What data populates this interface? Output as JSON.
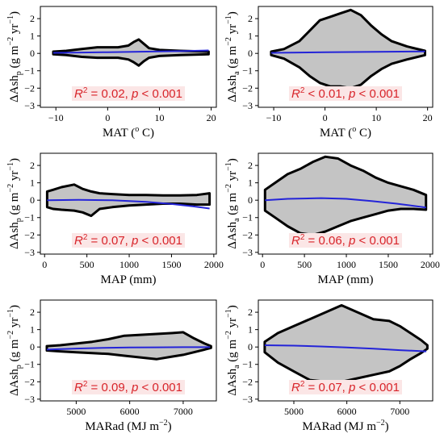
{
  "colors": {
    "cloud": "#c4c4c4",
    "cloud_edge": "#000000",
    "trend": "#2424d8",
    "stat_text": "#d8242a",
    "stat_box": "#fbe6e6"
  },
  "chart_data": [
    {
      "id": "a",
      "type": "scatter",
      "xlabel_main": "MAT (",
      "xlabel_sup": "o",
      "xlabel_end": " C)",
      "ylabel_main": "ΔAsh",
      "ylabel_sub": "p",
      "ylabel_unit": " (g m",
      "ylabel_sup1": "−2",
      "ylabel_mid": " yr",
      "ylabel_sup2": "−1",
      "ylabel_close": ")",
      "xlim": [
        -13,
        21
      ],
      "ylim": [
        -3.1,
        2.7
      ],
      "xticks": [
        -10,
        0,
        10,
        20
      ],
      "xtick_labels": [
        "−10",
        "0",
        "10",
        "20"
      ],
      "yticks": [
        -3,
        -2,
        -1,
        0,
        1,
        2
      ],
      "ytick_labels": [
        "−3",
        "−2",
        "−1",
        "0",
        "1",
        "2"
      ],
      "stat_r2": "R",
      "stat_sup": "2",
      "stat_rest": " = 0.02, ",
      "stat_p": "p",
      "stat_end": " < 0.001",
      "trend": {
        "x": [
          -10.5,
          -5,
          0,
          5,
          10,
          15,
          19.5
        ],
        "y": [
          0.03,
          0.05,
          0.07,
          0.09,
          0.11,
          0.14,
          0.17
        ]
      },
      "upper": {
        "x": [
          -10.5,
          -8,
          -5,
          -2,
          0,
          2,
          4,
          5,
          6,
          7,
          8,
          10,
          14,
          19.5
        ],
        "y": [
          0.1,
          0.15,
          0.25,
          0.35,
          0.35,
          0.35,
          0.45,
          0.65,
          0.8,
          0.55,
          0.3,
          0.2,
          0.15,
          0.1
        ]
      },
      "lower": {
        "x": [
          -10.5,
          -8,
          -5,
          -2,
          0,
          2,
          4,
          5,
          6,
          7,
          8,
          10,
          14,
          19.5
        ],
        "y": [
          -0.05,
          -0.1,
          -0.2,
          -0.25,
          -0.25,
          -0.25,
          -0.35,
          -0.5,
          -0.7,
          -0.45,
          -0.25,
          -0.15,
          -0.1,
          -0.05
        ]
      }
    },
    {
      "id": "b",
      "type": "scatter",
      "xlabel_main": "MAT (",
      "xlabel_sup": "o",
      "xlabel_end": " C)",
      "ylabel_main": "ΔAsh",
      "ylabel_sub": "a",
      "ylabel_unit": " (g m",
      "ylabel_sup1": "−2",
      "ylabel_mid": " yr",
      "ylabel_sup2": "−1",
      "ylabel_close": ")",
      "xlim": [
        -13,
        21
      ],
      "ylim": [
        -3.1,
        2.7
      ],
      "xticks": [
        -10,
        0,
        10,
        20
      ],
      "xtick_labels": [
        "−10",
        "0",
        "10",
        "20"
      ],
      "yticks": [
        -3,
        -2,
        -1,
        0,
        1,
        2
      ],
      "ytick_labels": [
        "−3",
        "−2",
        "−1",
        "0",
        "1",
        "2"
      ],
      "stat_r2": "R",
      "stat_sup": "2",
      "stat_rest": " < 0.01, ",
      "stat_p": "p",
      "stat_end": " < 0.001",
      "trend": {
        "x": [
          -10.5,
          -5,
          0,
          5,
          10,
          15,
          19.5
        ],
        "y": [
          0.03,
          0.05,
          0.07,
          0.08,
          0.09,
          0.1,
          0.11
        ]
      },
      "upper": {
        "x": [
          -10.5,
          -8,
          -5,
          -3,
          -1,
          1,
          3,
          5,
          7,
          9,
          11,
          13,
          16,
          19.5
        ],
        "y": [
          0.1,
          0.25,
          0.7,
          1.3,
          1.9,
          2.1,
          2.3,
          2.5,
          2.2,
          1.6,
          1.1,
          0.7,
          0.4,
          0.15
        ]
      },
      "lower": {
        "x": [
          -10.5,
          -8,
          -5,
          -3,
          -1,
          1,
          3,
          5,
          7,
          9,
          11,
          13,
          16,
          19.5
        ],
        "y": [
          -0.1,
          -0.3,
          -0.8,
          -1.3,
          -1.7,
          -1.9,
          -1.9,
          -2.0,
          -1.8,
          -1.3,
          -0.9,
          -0.6,
          -0.35,
          -0.1
        ]
      }
    },
    {
      "id": "c",
      "type": "scatter",
      "xlabel_main": "MAP (mm)",
      "xlabel_sup": "",
      "xlabel_end": "",
      "ylabel_main": "ΔAsh",
      "ylabel_sub": "p",
      "ylabel_unit": " (g m",
      "ylabel_sup1": "−2",
      "ylabel_mid": " yr",
      "ylabel_sup2": "−1",
      "ylabel_close": ")",
      "xlim": [
        -50,
        2030
      ],
      "ylim": [
        -3.1,
        2.7
      ],
      "xticks": [
        0,
        500,
        1000,
        1500,
        2000
      ],
      "xtick_labels": [
        "0",
        "500",
        "1000",
        "1500",
        "2000"
      ],
      "yticks": [
        -3,
        -2,
        -1,
        0,
        1,
        2
      ],
      "ytick_labels": [
        "−3",
        "−2",
        "−1",
        "0",
        "1",
        "2"
      ],
      "stat_r2": "R",
      "stat_sup": "2",
      "stat_rest": " = 0.07, ",
      "stat_p": "p",
      "stat_end": " < 0.001",
      "trend": {
        "x": [
          30,
          400,
          800,
          1200,
          1500,
          1750,
          1950
        ],
        "y": [
          0.0,
          0.02,
          0.0,
          -0.1,
          -0.22,
          -0.35,
          -0.48
        ]
      },
      "upper": {
        "x": [
          30,
          100,
          200,
          350,
          450,
          550,
          650,
          800,
          1000,
          1200,
          1400,
          1600,
          1800,
          1950
        ],
        "y": [
          0.5,
          0.6,
          0.75,
          0.9,
          0.65,
          0.5,
          0.4,
          0.35,
          0.3,
          0.3,
          0.28,
          0.28,
          0.3,
          0.4
        ]
      },
      "lower": {
        "x": [
          30,
          100,
          200,
          350,
          450,
          550,
          650,
          800,
          1000,
          1200,
          1400,
          1600,
          1800,
          1950
        ],
        "y": [
          -0.4,
          -0.5,
          -0.55,
          -0.6,
          -0.7,
          -0.9,
          -0.5,
          -0.4,
          -0.3,
          -0.25,
          -0.2,
          -0.2,
          -0.25,
          -0.25
        ]
      }
    },
    {
      "id": "d",
      "type": "scatter",
      "xlabel_main": "MAP (mm)",
      "xlabel_sup": "",
      "xlabel_end": "",
      "ylabel_main": "ΔAsh",
      "ylabel_sub": "a",
      "ylabel_unit": " (g m",
      "ylabel_sup1": "−2",
      "ylabel_mid": " yr",
      "ylabel_sup2": "−1",
      "ylabel_close": ")",
      "xlim": [
        -50,
        2030
      ],
      "ylim": [
        -3.1,
        2.7
      ],
      "xticks": [
        0,
        500,
        1000,
        1500,
        2000
      ],
      "xtick_labels": [
        "0",
        "500",
        "1000",
        "1500",
        "2000"
      ],
      "yticks": [
        -3,
        -2,
        -1,
        0,
        1,
        2
      ],
      "ytick_labels": [
        "−3",
        "−2",
        "−1",
        "0",
        "1",
        "2"
      ],
      "stat_r2": "R",
      "stat_sup": "2",
      "stat_rest": " = 0.06, ",
      "stat_p": "p",
      "stat_end": " < 0.001",
      "trend": {
        "x": [
          30,
          300,
          700,
          1000,
          1300,
          1600,
          1950
        ],
        "y": [
          0.0,
          0.08,
          0.12,
          0.08,
          -0.05,
          -0.2,
          -0.42
        ]
      },
      "upper": {
        "x": [
          30,
          150,
          300,
          450,
          600,
          750,
          900,
          1050,
          1200,
          1350,
          1500,
          1650,
          1800,
          1950
        ],
        "y": [
          0.6,
          1.0,
          1.5,
          1.8,
          2.2,
          2.5,
          2.4,
          2.0,
          1.7,
          1.3,
          1.0,
          0.8,
          0.6,
          0.3
        ]
      },
      "lower": {
        "x": [
          30,
          150,
          300,
          450,
          600,
          750,
          900,
          1050,
          1200,
          1350,
          1500,
          1650,
          1800,
          1950
        ],
        "y": [
          -0.6,
          -1.0,
          -1.5,
          -1.9,
          -2.0,
          -1.8,
          -1.5,
          -1.2,
          -1.0,
          -0.8,
          -0.6,
          -0.5,
          -0.5,
          -0.55
        ]
      }
    },
    {
      "id": "e",
      "type": "scatter",
      "xlabel_main": "MARad (MJ m",
      "xlabel_sup": "−2",
      "xlabel_end": ")",
      "ylabel_main": "ΔAsh",
      "ylabel_sub": "p",
      "ylabel_unit": " (g m",
      "ylabel_sup1": "−2",
      "ylabel_mid": " yr",
      "ylabel_sup2": "−1",
      "ylabel_close": ")",
      "xlim": [
        4330,
        7620
      ],
      "ylim": [
        -3.1,
        2.7
      ],
      "xticks": [
        5000,
        6000,
        7000
      ],
      "xtick_labels": [
        "5000",
        "6000",
        "7000"
      ],
      "yticks": [
        -3,
        -2,
        -1,
        0,
        1,
        2
      ],
      "ytick_labels": [
        "−3",
        "−2",
        "−1",
        "0",
        "1",
        "2"
      ],
      "stat_r2": "R",
      "stat_sup": "2",
      "stat_rest": " = 0.09, ",
      "stat_p": "p",
      "stat_end": " < 0.001",
      "trend": {
        "x": [
          4450,
          5000,
          5500,
          6000,
          6500,
          7000,
          7500
        ],
        "y": [
          -0.15,
          -0.09,
          -0.05,
          -0.03,
          -0.02,
          -0.01,
          -0.01
        ]
      },
      "upper": {
        "x": [
          4450,
          4700,
          5000,
          5300,
          5600,
          5900,
          6200,
          6500,
          6800,
          7000,
          7200,
          7400,
          7520
        ],
        "y": [
          0.05,
          0.1,
          0.2,
          0.3,
          0.45,
          0.65,
          0.7,
          0.75,
          0.8,
          0.85,
          0.5,
          0.2,
          0.05
        ]
      },
      "lower": {
        "x": [
          4450,
          4700,
          5000,
          5300,
          5600,
          5900,
          6200,
          6500,
          6800,
          7000,
          7200,
          7400,
          7520
        ],
        "y": [
          -0.2,
          -0.25,
          -0.3,
          -0.35,
          -0.4,
          -0.5,
          -0.6,
          -0.7,
          -0.55,
          -0.45,
          -0.3,
          -0.15,
          -0.05
        ]
      }
    },
    {
      "id": "f",
      "type": "scatter",
      "xlabel_main": "MARad (MJ m",
      "xlabel_sup": "−2",
      "xlabel_end": ")",
      "ylabel_main": "ΔAsh",
      "ylabel_sub": "a",
      "ylabel_unit": " (g m",
      "ylabel_sup1": "−2",
      "ylabel_mid": " yr",
      "ylabel_sup2": "−1",
      "ylabel_close": ")",
      "xlim": [
        4330,
        7620
      ],
      "ylim": [
        -3.1,
        2.7
      ],
      "xticks": [
        5000,
        6000,
        7000
      ],
      "xtick_labels": [
        "5000",
        "6000",
        "7000"
      ],
      "yticks": [
        -3,
        -2,
        -1,
        0,
        1,
        2
      ],
      "ytick_labels": [
        "−3",
        "−2",
        "−1",
        "0",
        "1",
        "2"
      ],
      "stat_r2": "R",
      "stat_sup": "2",
      "stat_rest": " = 0.07, ",
      "stat_p": "p",
      "stat_end": " < 0.001",
      "trend": {
        "x": [
          4450,
          5000,
          5500,
          6000,
          6500,
          7000,
          7500
        ],
        "y": [
          0.1,
          0.08,
          0.03,
          -0.03,
          -0.1,
          -0.18,
          -0.25
        ]
      },
      "upper": {
        "x": [
          4450,
          4700,
          5000,
          5300,
          5600,
          5900,
          6200,
          6500,
          6800,
          7000,
          7200,
          7400,
          7520
        ],
        "y": [
          0.3,
          0.8,
          1.2,
          1.6,
          2.0,
          2.4,
          2.0,
          1.6,
          1.5,
          1.2,
          0.8,
          0.4,
          0.1
        ]
      },
      "lower": {
        "x": [
          4450,
          4700,
          5000,
          5300,
          5600,
          5900,
          6200,
          6500,
          6800,
          7000,
          7200,
          7400,
          7520
        ],
        "y": [
          -0.3,
          -0.9,
          -1.4,
          -1.9,
          -2.0,
          -2.0,
          -1.8,
          -1.6,
          -1.4,
          -1.1,
          -0.7,
          -0.35,
          -0.1
        ]
      }
    }
  ]
}
